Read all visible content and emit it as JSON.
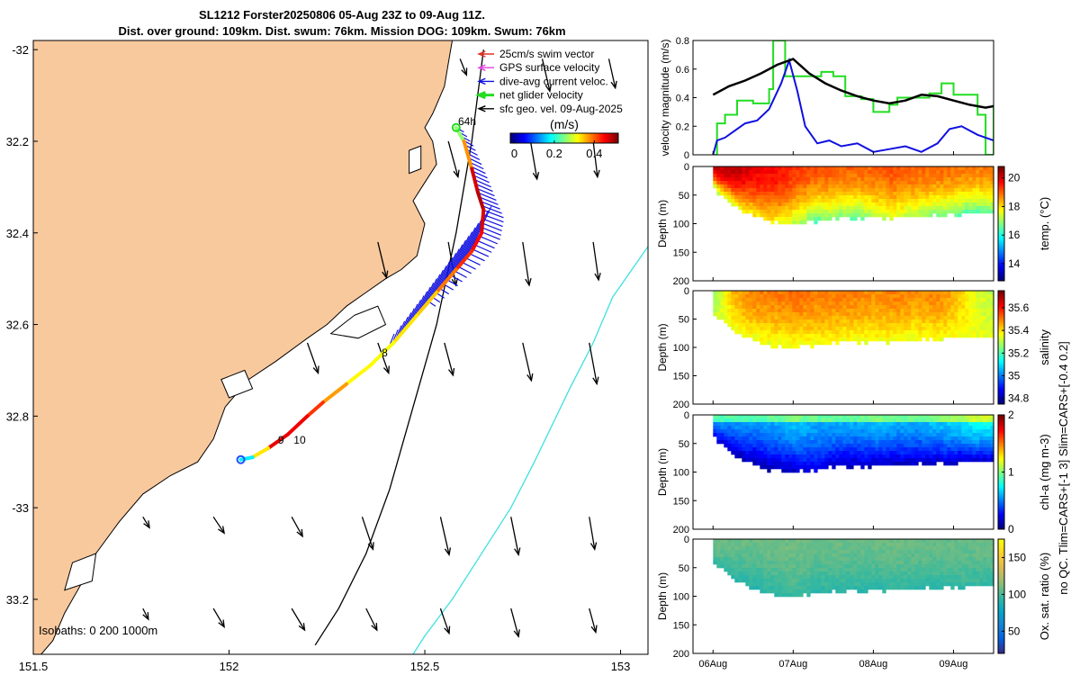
{
  "title": {
    "line1": "SL1212 Forster20250806 05-Aug 23Z to 09-Aug 11Z.",
    "line2": "Dist. over ground: 109km. Dist. swum: 76km. Mission DOG: 109km. Swum: 76km"
  },
  "colors": {
    "land": "#F9C99E",
    "swim_vector": "#E03020",
    "gps_velocity": "#E040E0",
    "dive_avg": "#1010E0",
    "net_glider": "#22DD22",
    "sfc_geo": "#000000",
    "isobath_far": "#40E0E0",
    "speed": "#000000"
  },
  "chart_data": [
    {
      "id": "map",
      "type": "scatter",
      "xlabel": "",
      "ylabel": "",
      "xlim": [
        151.5,
        153.07
      ],
      "ylim": [
        -33.32,
        -31.98
      ],
      "xticks": [
        151.5,
        152,
        152.5,
        153
      ],
      "xtick_labels": [
        "151.5",
        "152",
        "152.5",
        "153"
      ],
      "yticks": [
        -32,
        -32.2,
        -32.4,
        -32.6,
        -32.8,
        -33,
        -33.2
      ],
      "ytick_labels": [
        "-32",
        "32.2",
        "32.4",
        "32.6",
        "32.8",
        "-33",
        "33.2"
      ],
      "legend": [
        {
          "label": "25cm/s swim vector",
          "color_key": "swim_vector"
        },
        {
          "label": "GPS surface velocity",
          "color_key": "gps_velocity"
        },
        {
          "label": "dive-avg current veloc.",
          "color_key": "dive_avg"
        },
        {
          "label": "net glider velocity",
          "color_key": "net_glider"
        },
        {
          "label": "sfc geo. vel. 09-Aug-2025",
          "color_key": "sfc_geo"
        }
      ],
      "colorbar": {
        "label": "(m/s)",
        "ticks": [
          0,
          0.2,
          0.4
        ],
        "tick_labels": [
          "0",
          "0.2",
          "0.4"
        ],
        "range": [
          -0.02,
          0.52
        ]
      },
      "isobaths_label": "Isobaths: 0   200  1000m",
      "track": {
        "lon": [
          152.58,
          152.6,
          152.62,
          152.635,
          152.65,
          152.645,
          152.62,
          152.58,
          152.53,
          152.48,
          152.42,
          152.36,
          152.3,
          152.24,
          152.2,
          152.15,
          152.1,
          152.06,
          152.03
        ],
        "lat": [
          -32.17,
          -32.2,
          -32.26,
          -32.31,
          -32.35,
          -32.4,
          -32.44,
          -32.48,
          -32.53,
          -32.58,
          -32.64,
          -32.69,
          -32.73,
          -32.77,
          -32.8,
          -32.84,
          -32.87,
          -32.89,
          -32.895
        ]
      },
      "track_labels": [
        {
          "text": "64h",
          "lon": 152.585,
          "lat": -32.165
        },
        {
          "text": "8",
          "lon": 152.39,
          "lat": -32.67
        },
        {
          "text": "9",
          "lon": 152.125,
          "lat": -32.86
        },
        {
          "text": "10",
          "lon": 152.165,
          "lat": -32.86
        }
      ],
      "dive_avg_current": {
        "lon": [
          152.58,
          152.6,
          152.63,
          152.645,
          152.64,
          152.62,
          152.6,
          152.56
        ],
        "lat": [
          -32.17,
          -32.21,
          -32.28,
          -32.33,
          -32.38,
          -32.43,
          -32.46,
          -32.5
        ],
        "u": [
          0.03,
          0.05,
          0.06,
          0.06,
          0.03,
          -0.02,
          -0.04,
          -0.05
        ],
        "v": [
          -0.12,
          -0.15,
          -0.18,
          -0.19,
          -0.18,
          -0.16,
          -0.12,
          -0.08
        ]
      },
      "sfc_geo_velocity": {
        "lon": [
          152.59,
          152.8,
          152.97,
          152.56,
          152.77,
          152.93,
          152.38,
          152.56,
          152.75,
          152.93,
          152.2,
          152.38,
          152.55,
          152.75,
          152.92,
          151.78,
          151.96,
          152.16,
          152.34,
          152.54,
          152.72,
          152.92,
          151.78,
          151.96,
          152.16,
          152.35,
          152.54,
          152.72,
          152.92
        ],
        "lat": [
          -32.02,
          -32.02,
          -32.02,
          -32.2,
          -32.2,
          -32.2,
          -32.42,
          -32.42,
          -32.42,
          -32.42,
          -32.64,
          -32.64,
          -32.64,
          -32.64,
          -32.64,
          -33.02,
          -33.02,
          -33.02,
          -33.02,
          -33.02,
          -33.02,
          -33.02,
          -33.22,
          -33.22,
          -33.22,
          -33.22,
          -33.22,
          -33.22,
          -33.22
        ],
        "u": [
          0.06,
          0.07,
          0.06,
          0.09,
          0.06,
          0.04,
          0.08,
          0.07,
          0.06,
          0.05,
          0.1,
          0.1,
          0.08,
          0.08,
          0.07,
          0.06,
          0.1,
          0.1,
          0.1,
          0.08,
          0.07,
          0.05,
          0.05,
          0.1,
          0.12,
          0.1,
          0.08,
          0.07,
          0.06
        ],
        "v": [
          -0.15,
          -0.3,
          -0.27,
          -0.33,
          -0.35,
          -0.33,
          -0.33,
          -0.4,
          -0.4,
          -0.35,
          -0.28,
          -0.28,
          -0.3,
          -0.35,
          -0.38,
          -0.1,
          -0.15,
          -0.18,
          -0.3,
          -0.35,
          -0.35,
          -0.3,
          -0.1,
          -0.17,
          -0.2,
          -0.2,
          -0.23,
          -0.26,
          -0.22
        ]
      },
      "isobath_200": {
        "lon": [
          152.65,
          152.62,
          152.58,
          152.53,
          152.47,
          152.41,
          152.35,
          152.28,
          152.22
        ],
        "lat": [
          -32.0,
          -32.2,
          -32.4,
          -32.6,
          -32.78,
          -32.96,
          -33.1,
          -33.22,
          -33.3
        ]
      },
      "isobath_1000": {
        "lon": [
          153.07,
          152.98,
          152.93,
          152.87,
          152.78,
          152.72,
          152.63,
          152.57,
          152.5,
          152.47
        ],
        "lat": [
          -32.43,
          -32.54,
          -32.64,
          -32.74,
          -32.9,
          -33.0,
          -33.12,
          -33.2,
          -33.28,
          -33.32
        ]
      }
    },
    {
      "id": "speed",
      "type": "line",
      "xlabel": "",
      "ylabel": "velocity magnitude (m/s)",
      "ylim": [
        0,
        0.8
      ],
      "yticks": [
        0,
        0.2,
        0.4,
        0.6,
        0.8
      ],
      "ytick_labels": [
        "0",
        "0.2",
        "0.4",
        "0.6",
        "0.8"
      ],
      "xlim": [
        5.75,
        9.5
      ],
      "series": [
        {
          "name": "net glider velocity",
          "color_key": "net_glider",
          "x": [
            6.0,
            6.05,
            6.15,
            6.3,
            6.5,
            6.7,
            6.75,
            6.82,
            6.9,
            7.0,
            7.2,
            7.35,
            7.5,
            7.65,
            7.85,
            8.0,
            8.2,
            8.3,
            8.5,
            8.7,
            8.85,
            9.0,
            9.3,
            9.4,
            9.5
          ],
          "y": [
            0.0,
            0.22,
            0.28,
            0.38,
            0.36,
            0.46,
            0.8,
            0.8,
            0.55,
            0.55,
            0.55,
            0.58,
            0.55,
            0.41,
            0.39,
            0.3,
            0.35,
            0.4,
            0.4,
            0.43,
            0.5,
            0.42,
            0.28,
            0.0,
            0.35
          ]
        },
        {
          "name": "dive-avg current veloc.",
          "color_key": "dive_avg",
          "x": [
            6.0,
            6.05,
            6.15,
            6.25,
            6.4,
            6.55,
            6.7,
            6.85,
            6.95,
            7.05,
            7.15,
            7.3,
            7.45,
            7.6,
            7.8,
            8.0,
            8.2,
            8.4,
            8.6,
            8.8,
            8.95,
            9.1,
            9.3,
            9.5
          ],
          "y": [
            0.0,
            0.1,
            0.12,
            0.16,
            0.22,
            0.24,
            0.32,
            0.5,
            0.66,
            0.45,
            0.2,
            0.08,
            0.1,
            0.06,
            0.08,
            0.02,
            0.04,
            0.06,
            0.02,
            0.08,
            0.18,
            0.2,
            0.14,
            0.1
          ]
        },
        {
          "name": "speed",
          "color_key": "speed",
          "x": [
            6.0,
            6.2,
            6.4,
            6.6,
            6.8,
            7.0,
            7.2,
            7.4,
            7.6,
            7.8,
            8.0,
            8.2,
            8.4,
            8.6,
            8.8,
            9.0,
            9.2,
            9.4,
            9.5
          ],
          "y": [
            0.42,
            0.48,
            0.52,
            0.57,
            0.63,
            0.67,
            0.57,
            0.5,
            0.45,
            0.41,
            0.38,
            0.36,
            0.38,
            0.42,
            0.41,
            0.38,
            0.35,
            0.33,
            0.34
          ]
        }
      ]
    },
    {
      "id": "temperature",
      "type": "heatmap",
      "ylabel": "Depth (m)",
      "ylim": [
        0,
        200
      ],
      "yticks": [
        0,
        50,
        100,
        150,
        200
      ],
      "ytick_labels": [
        "0",
        "50",
        "100",
        "150",
        "200"
      ],
      "xlim": [
        5.75,
        9.5
      ],
      "colorbar": {
        "label": "temp. (°C)",
        "range": [
          12.8,
          20.8
        ],
        "ticks": [
          14,
          16,
          18,
          20
        ],
        "tick_labels": [
          "14",
          "16",
          "18",
          "20"
        ]
      },
      "time_day": [
        6.0,
        6.25,
        6.5,
        6.75,
        7.0,
        7.25,
        7.5,
        7.75,
        8.0,
        8.25,
        8.5,
        8.75,
        9.0,
        9.25,
        9.5
      ],
      "bottom_depth_m": [
        38,
        68,
        85,
        96,
        98,
        92,
        88,
        88,
        88,
        86,
        84,
        84,
        82,
        78,
        78
      ],
      "surface_value": [
        20.2,
        20.4,
        19.9,
        19.8,
        19.4,
        19.2,
        19.1,
        19.0,
        19.0,
        19.2,
        19.0,
        19.0,
        18.9,
        18.8,
        18.9
      ],
      "bottom_value": [
        17.0,
        17.5,
        17.8,
        17.8,
        17.2,
        16.5,
        16.8,
        16.5,
        17.2,
        17.4,
        17.2,
        16.8,
        16.6,
        16.4,
        16.6
      ]
    },
    {
      "id": "salinity",
      "type": "heatmap",
      "ylabel": "Depth (m)",
      "ylim": [
        0,
        200
      ],
      "yticks": [
        0,
        50,
        100,
        150,
        200
      ],
      "ytick_labels": [
        "0",
        "50",
        "100",
        "150",
        "200"
      ],
      "xlim": [
        5.75,
        9.5
      ],
      "colorbar": {
        "label": "salinity",
        "range": [
          34.75,
          35.75
        ],
        "ticks": [
          34.8,
          35,
          35.2,
          35.4,
          35.6
        ],
        "tick_labels": [
          "34.8",
          "35",
          "35.2",
          "35.4",
          "35.6"
        ]
      },
      "time_day": [
        6.0,
        6.25,
        6.5,
        6.75,
        7.0,
        7.25,
        7.5,
        7.75,
        8.0,
        8.25,
        8.5,
        8.75,
        9.0,
        9.25,
        9.5
      ],
      "bottom_depth_m": [
        38,
        68,
        85,
        96,
        98,
        92,
        88,
        88,
        88,
        86,
        84,
        84,
        82,
        78,
        78
      ],
      "surface_value": [
        35.28,
        35.45,
        35.5,
        35.5,
        35.52,
        35.5,
        35.5,
        35.5,
        35.48,
        35.5,
        35.48,
        35.5,
        35.45,
        35.35,
        35.3
      ],
      "bottom_value": [
        35.33,
        35.36,
        35.35,
        35.34,
        35.35,
        35.36,
        35.36,
        35.35,
        35.36,
        35.36,
        35.35,
        35.35,
        35.36,
        35.36,
        35.35
      ]
    },
    {
      "id": "chlorophyll",
      "type": "heatmap",
      "ylabel": "Depth (m)",
      "ylim": [
        0,
        200
      ],
      "yticks": [
        0,
        50,
        100,
        150,
        200
      ],
      "ytick_labels": [
        "0",
        "50",
        "100",
        "150",
        "200"
      ],
      "xlim": [
        5.75,
        9.5
      ],
      "colorbar": {
        "label": "chl-a (mg m-3)",
        "range": [
          0,
          2
        ],
        "ticks": [
          0,
          1,
          2
        ],
        "tick_labels": [
          "0",
          "1",
          "2"
        ]
      },
      "time_day": [
        6.0,
        6.25,
        6.5,
        6.75,
        7.0,
        7.25,
        7.5,
        7.75,
        8.0,
        8.25,
        8.5,
        8.75,
        9.0,
        9.25,
        9.5
      ],
      "bottom_depth_m": [
        38,
        68,
        85,
        96,
        98,
        92,
        88,
        88,
        88,
        86,
        84,
        84,
        82,
        78,
        78
      ],
      "surface_value": [
        0.55,
        0.55,
        0.55,
        0.6,
        0.65,
        0.6,
        0.6,
        0.6,
        0.65,
        0.62,
        0.6,
        0.65,
        0.7,
        0.8,
        0.8
      ],
      "bottom_value": [
        0.15,
        0.1,
        0.08,
        0.08,
        0.12,
        0.2,
        0.12,
        0.1,
        0.1,
        0.1,
        0.12,
        0.1,
        0.1,
        0.12,
        0.1
      ]
    },
    {
      "id": "oxygen",
      "type": "heatmap",
      "ylabel": "Depth (m)",
      "ylim": [
        0,
        200
      ],
      "yticks": [
        0,
        50,
        100,
        150,
        200
      ],
      "ytick_labels": [
        "0",
        "50",
        "100",
        "150",
        "200"
      ],
      "xlim": [
        5.75,
        9.5
      ],
      "xticks": [
        6,
        7,
        8,
        9
      ],
      "xtick_labels": [
        "06Aug",
        "07Aug",
        "08Aug",
        "09Aug"
      ],
      "colorbar": {
        "label": "Ox. sat. ratio (%)",
        "range": [
          20,
          175
        ],
        "ticks": [
          50,
          100,
          150
        ],
        "tick_labels": [
          "50",
          "100",
          "150"
        ]
      },
      "time_day": [
        6.0,
        6.25,
        6.5,
        6.75,
        7.0,
        7.25,
        7.5,
        7.75,
        8.0,
        8.25,
        8.5,
        8.75,
        9.0,
        9.25,
        9.5
      ],
      "bottom_depth_m": [
        38,
        68,
        85,
        96,
        98,
        92,
        88,
        88,
        88,
        86,
        84,
        84,
        82,
        78,
        78
      ],
      "surface_value": [
        108,
        108,
        108,
        109,
        110,
        108,
        108,
        108,
        108,
        109,
        108,
        108,
        108,
        108,
        109
      ],
      "bottom_value": [
        96,
        92,
        90,
        94,
        97,
        92,
        92,
        93,
        92,
        94,
        93,
        92,
        94,
        95,
        94
      ]
    }
  ],
  "qc_note": "no QC. Tlim=CARS+[-1 3] Slim=CARS+[-0.4 0.2]"
}
